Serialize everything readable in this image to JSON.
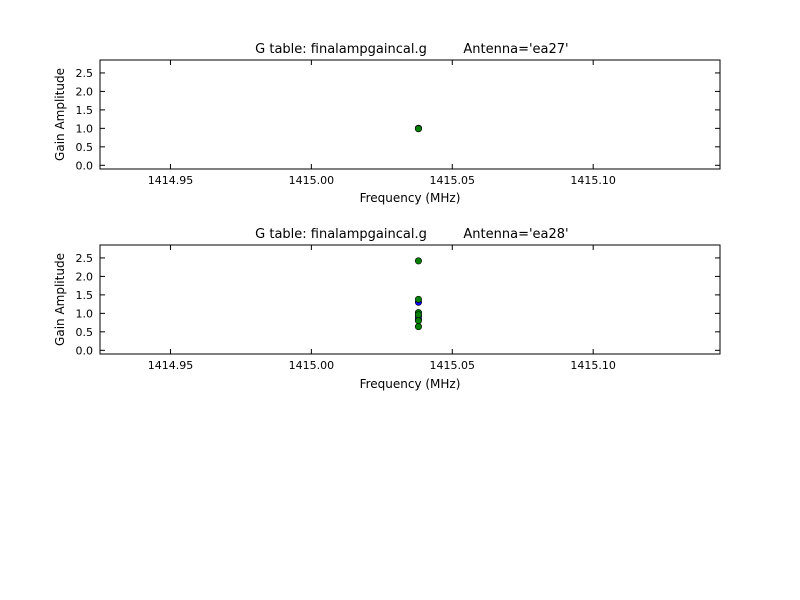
{
  "chart_data": [
    {
      "type": "scatter",
      "title_left": "G table: finalampgaincal.g",
      "title_right": "Antenna='ea27'",
      "xlabel": "Frequency (MHz)",
      "ylabel": "Gain Amplitude",
      "xlim": [
        1414.925,
        1415.145
      ],
      "ylim": [
        -0.1,
        2.85
      ],
      "xticks": [
        "1414.95",
        "1415.00",
        "1415.05",
        "1415.10"
      ],
      "yticks": [
        "0.0",
        "0.5",
        "1.0",
        "1.5",
        "2.0",
        "2.5"
      ],
      "grid": false,
      "series": [
        {
          "color": "#0000ff",
          "points": [
            {
              "x": 1415.038,
              "y": 1.0
            },
            {
              "x": 1415.038,
              "y": 1.0
            }
          ]
        },
        {
          "color": "#008000",
          "points": [
            {
              "x": 1415.038,
              "y": 1.0
            },
            {
              "x": 1415.038,
              "y": 0.99
            }
          ]
        }
      ]
    },
    {
      "type": "scatter",
      "title_left": "G table: finalampgaincal.g",
      "title_right": "Antenna='ea28'",
      "xlabel": "Frequency (MHz)",
      "ylabel": "Gain Amplitude",
      "xlim": [
        1414.925,
        1415.145
      ],
      "ylim": [
        -0.1,
        2.85
      ],
      "xticks": [
        "1414.95",
        "1415.00",
        "1415.05",
        "1415.10"
      ],
      "yticks": [
        "0.0",
        "0.5",
        "1.0",
        "1.5",
        "2.0",
        "2.5"
      ],
      "grid": false,
      "series": [
        {
          "color": "#0000ff",
          "points": [
            {
              "x": 1415.038,
              "y": 1.3
            },
            {
              "x": 1415.038,
              "y": 0.93
            },
            {
              "x": 1415.038,
              "y": 0.85
            }
          ]
        },
        {
          "color": "#008000",
          "points": [
            {
              "x": 1415.038,
              "y": 2.42
            },
            {
              "x": 1415.038,
              "y": 1.38
            },
            {
              "x": 1415.038,
              "y": 1.02
            },
            {
              "x": 1415.038,
              "y": 0.96
            },
            {
              "x": 1415.038,
              "y": 0.8
            },
            {
              "x": 1415.038,
              "y": 0.64
            }
          ]
        }
      ]
    }
  ]
}
